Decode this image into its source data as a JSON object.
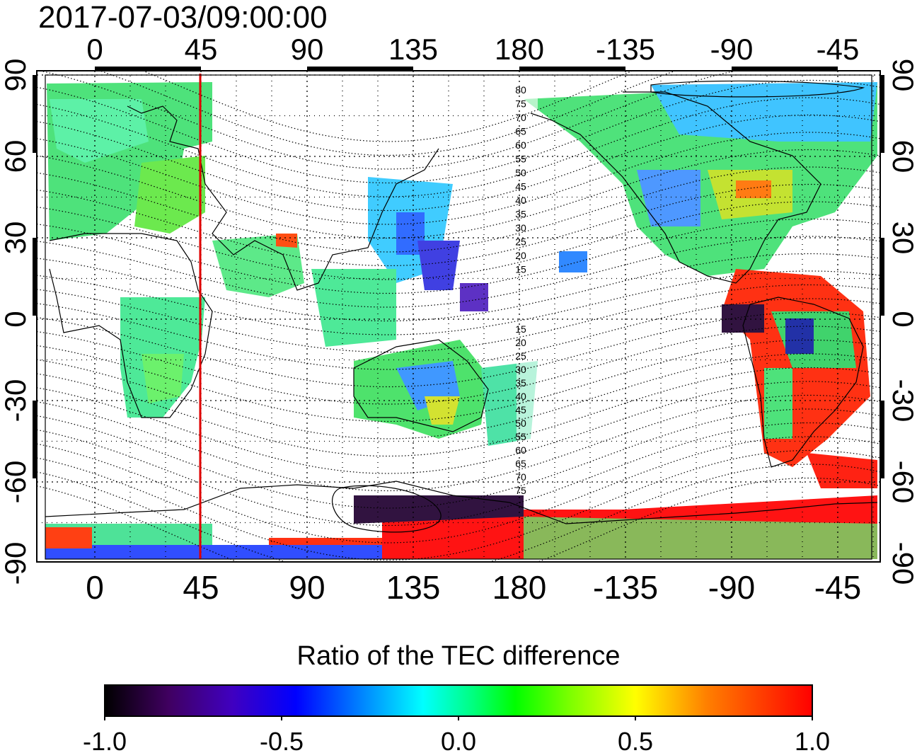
{
  "timestamp": "2017-07-03/09:00:00",
  "colorbar": {
    "title": "Ratio of the TEC difference",
    "tick_labels": [
      "-1.0",
      "-0.5",
      "0.0",
      "0.5",
      "1.0"
    ],
    "range": [
      -1.0,
      1.0
    ],
    "stops": [
      "#000000",
      "#400060",
      "#4000c0",
      "#0000ff",
      "#0080ff",
      "#00ffff",
      "#00ff80",
      "#00ff00",
      "#80ff00",
      "#ffff00",
      "#ff8000",
      "#ff0000"
    ]
  },
  "map": {
    "top_lon_labels": [
      "0",
      "45",
      "90",
      "135",
      "180",
      "-135",
      "-90",
      "-45"
    ],
    "bottom_lon_labels": [
      "0",
      "45",
      "90",
      "135",
      "180",
      "-135",
      "-90",
      "-45"
    ],
    "left_lat_labels": [
      "90",
      "60",
      "30",
      "0",
      "-30",
      "-60",
      "-90"
    ],
    "right_lat_labels": [
      "90",
      "60",
      "30",
      "0",
      "-30",
      "-60",
      "-90"
    ],
    "magnetic_lat_labels_north": [
      "80",
      "75",
      "70",
      "65",
      "60",
      "55",
      "50",
      "45",
      "40",
      "35",
      "30",
      "25",
      "20",
      "15"
    ],
    "magnetic_lat_labels_south": [
      "15",
      "20",
      "25",
      "30",
      "35",
      "40",
      "45",
      "50",
      "55",
      "60",
      "65",
      "70",
      "75"
    ],
    "marker_longitude": 45,
    "marker_color": "#e00000"
  }
}
